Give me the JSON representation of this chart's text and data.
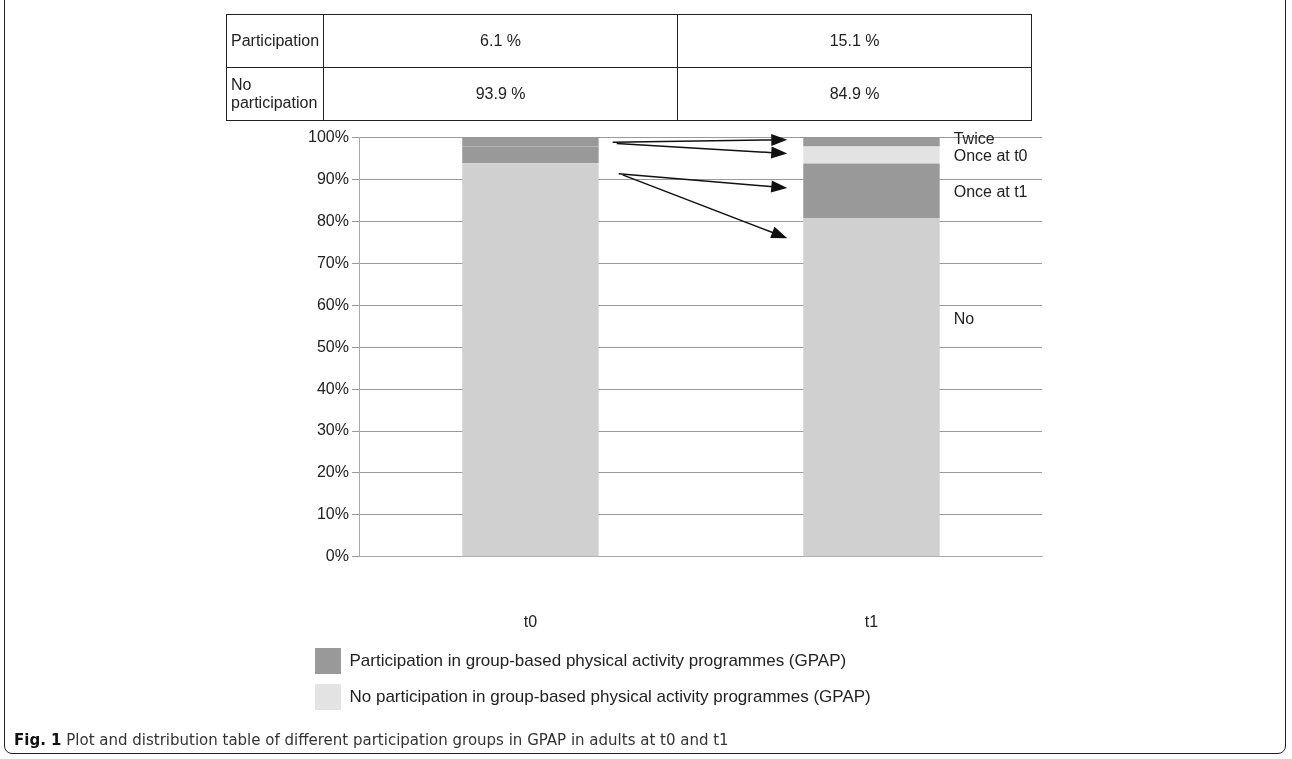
{
  "chart_data": {
    "type": "bar",
    "stacked": true,
    "categories": [
      "t0",
      "t1"
    ],
    "series": [
      {
        "color": "#cfd0cf",
        "values": [
          93.9,
          80.8
        ]
      },
      {
        "name": "Participation in group-based physical activity programmes (GPAP)",
        "color": "#999999",
        "values": [
          4.0,
          13.0
        ]
      },
      {
        "name": "No participation in group-based physical activity programmes (GPAP)",
        "color": "#e3e3e3",
        "values": [
          null,
          4.1
        ]
      },
      {
        "color": "#999999",
        "values": [
          2.1,
          2.1
        ]
      }
    ],
    "ylim": [
      0,
      100
    ],
    "yticks": [
      {
        "value": 0,
        "label": "0%"
      },
      {
        "value": 10,
        "label": "10%"
      },
      {
        "value": 20,
        "label": "20%"
      },
      {
        "value": 30,
        "label": "30%"
      },
      {
        "value": 40,
        "label": "40%"
      },
      {
        "value": 50,
        "label": "50%"
      },
      {
        "value": 60,
        "label": "60%"
      },
      {
        "value": 70,
        "label": "70%"
      },
      {
        "value": 80,
        "label": "80%"
      },
      {
        "value": 90,
        "label": "90%"
      },
      {
        "value": 100,
        "label": "100%"
      }
    ],
    "grid": "y",
    "legend": "bottom",
    "annotations": [
      "Participation",
      "6.1 %",
      "15.1 %",
      "No participation",
      "93.9 %",
      "84.9 %",
      "Twice",
      "Once at t0",
      "Once at t1",
      "No",
      "Fig. 1 Plot and distribution table of different participation groups in GPAP in adults at t0 and t1"
    ]
  }
}
